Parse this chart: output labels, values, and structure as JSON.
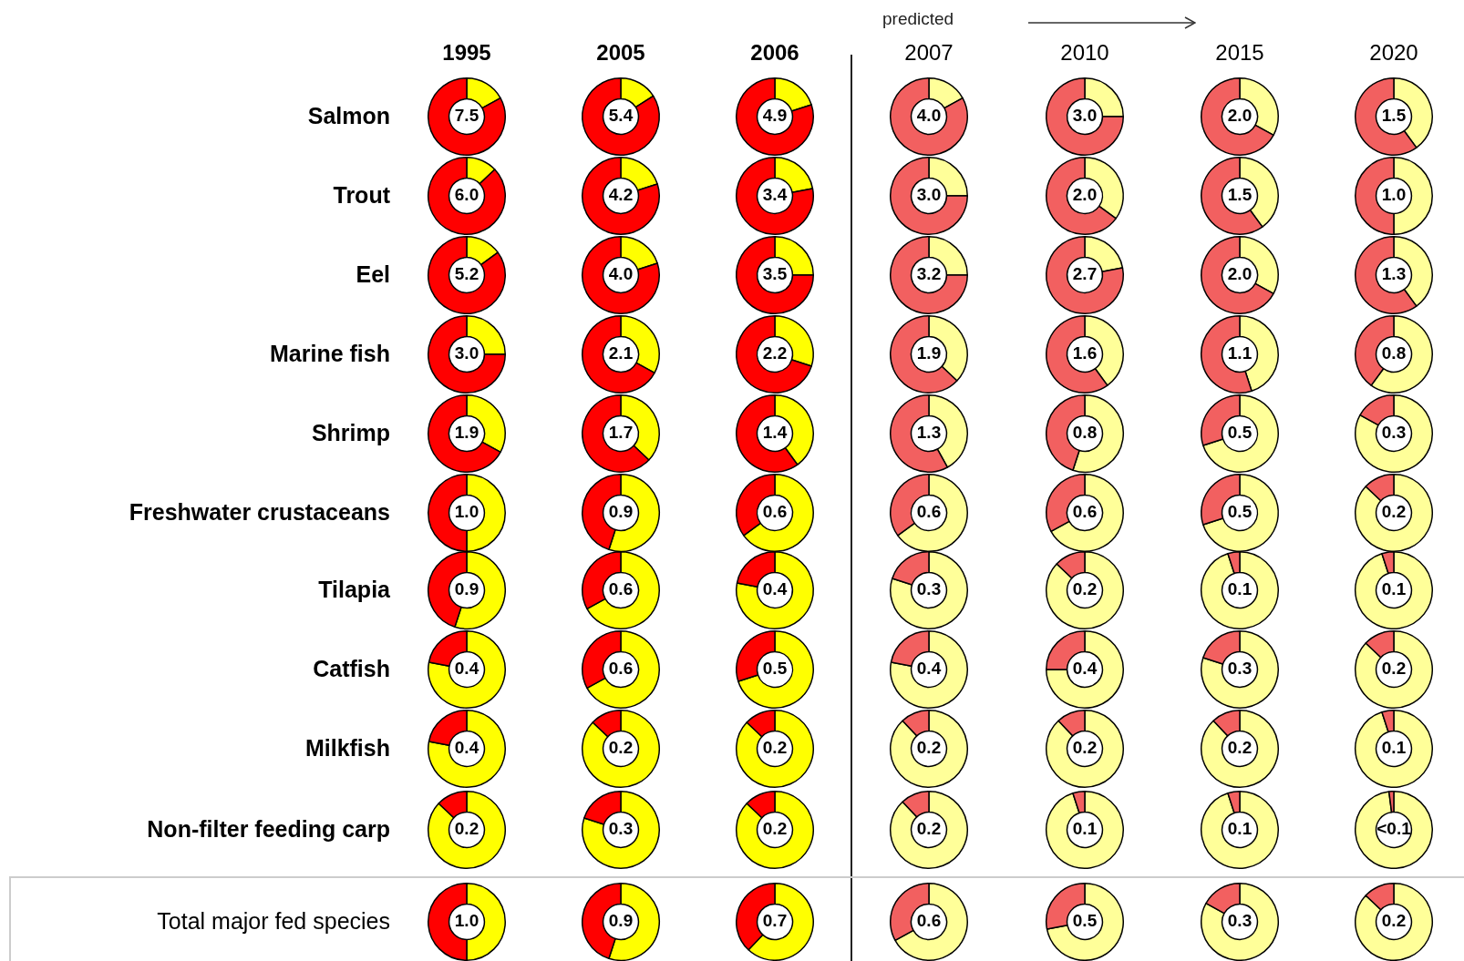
{
  "chart_data": [
    {
      "type": "other",
      "annotations": [
        "predicted",
        "1995",
        "2005",
        "2006",
        "2007",
        "2010",
        "2015",
        "2020"
      ]
    },
    {
      "type": "donut",
      "ylabel": "Salmon",
      "categories": [
        null,
        null
      ],
      "annotations": [
        "7.5",
        "5.4",
        "4.9",
        "4.0",
        "3.0",
        "2.0",
        "1.5"
      ],
      "series": [
        {
          "values": [
            17,
            83
          ],
          "colors": [
            "#ffff00",
            "#ff0000"
          ]
        },
        {
          "values": [
            16,
            84
          ],
          "colors": [
            "#ffff00",
            "#ff0000"
          ]
        },
        {
          "values": [
            20,
            80
          ],
          "colors": [
            "#ffff00",
            "#ff0000"
          ]
        },
        {
          "values": [
            17,
            83
          ],
          "colors": [
            "#ffff99",
            "#f26060"
          ]
        },
        {
          "values": [
            25,
            75
          ],
          "colors": [
            "#ffff99",
            "#f26060"
          ]
        },
        {
          "values": [
            33,
            67
          ],
          "colors": [
            "#ffff99",
            "#f26060"
          ]
        },
        {
          "values": [
            40,
            60
          ],
          "colors": [
            "#ffff99",
            "#f26060"
          ]
        }
      ]
    },
    {
      "type": "donut",
      "ylabel": "Trout",
      "categories": [
        null,
        null
      ],
      "annotations": [
        "6.0",
        "4.2",
        "3.4",
        "3.0",
        "2.0",
        "1.5",
        "1.0"
      ],
      "series": [
        {
          "values": [
            13,
            87
          ],
          "colors": [
            "#ffff00",
            "#ff0000"
          ]
        },
        {
          "values": [
            20,
            80
          ],
          "colors": [
            "#ffff00",
            "#ff0000"
          ]
        },
        {
          "values": [
            22,
            78
          ],
          "colors": [
            "#ffff00",
            "#ff0000"
          ]
        },
        {
          "values": [
            25,
            75
          ],
          "colors": [
            "#ffff99",
            "#f26060"
          ]
        },
        {
          "values": [
            35,
            65
          ],
          "colors": [
            "#ffff99",
            "#f26060"
          ]
        },
        {
          "values": [
            40,
            60
          ],
          "colors": [
            "#ffff99",
            "#f26060"
          ]
        },
        {
          "values": [
            50,
            50
          ],
          "colors": [
            "#ffff99",
            "#f26060"
          ]
        }
      ]
    },
    {
      "type": "donut",
      "ylabel": "Eel",
      "categories": [
        null,
        null
      ],
      "annotations": [
        "5.2",
        "4.0",
        "3.5",
        "3.2",
        "2.7",
        "2.0",
        "1.3"
      ],
      "series": [
        {
          "values": [
            15,
            85
          ],
          "colors": [
            "#ffff00",
            "#ff0000"
          ]
        },
        {
          "values": [
            20,
            80
          ],
          "colors": [
            "#ffff00",
            "#ff0000"
          ]
        },
        {
          "values": [
            25,
            75
          ],
          "colors": [
            "#ffff00",
            "#ff0000"
          ]
        },
        {
          "values": [
            25,
            75
          ],
          "colors": [
            "#ffff99",
            "#f26060"
          ]
        },
        {
          "values": [
            22,
            78
          ],
          "colors": [
            "#ffff99",
            "#f26060"
          ]
        },
        {
          "values": [
            33,
            67
          ],
          "colors": [
            "#ffff99",
            "#f26060"
          ]
        },
        {
          "values": [
            40,
            60
          ],
          "colors": [
            "#ffff99",
            "#f26060"
          ]
        }
      ]
    },
    {
      "type": "donut",
      "ylabel": "Marine fish",
      "categories": [
        null,
        null
      ],
      "annotations": [
        "3.0",
        "2.1",
        "2.2",
        "1.9",
        "1.6",
        "1.1",
        "0.8"
      ],
      "series": [
        {
          "values": [
            25,
            75
          ],
          "colors": [
            "#ffff00",
            "#ff0000"
          ]
        },
        {
          "values": [
            33,
            67
          ],
          "colors": [
            "#ffff00",
            "#ff0000"
          ]
        },
        {
          "values": [
            30,
            70
          ],
          "colors": [
            "#ffff00",
            "#ff0000"
          ]
        },
        {
          "values": [
            37,
            63
          ],
          "colors": [
            "#ffff99",
            "#f26060"
          ]
        },
        {
          "values": [
            40,
            60
          ],
          "colors": [
            "#ffff99",
            "#f26060"
          ]
        },
        {
          "values": [
            45,
            55
          ],
          "colors": [
            "#ffff99",
            "#f26060"
          ]
        },
        {
          "values": [
            60,
            40
          ],
          "colors": [
            "#ffff99",
            "#f26060"
          ]
        }
      ]
    },
    {
      "type": "donut",
      "ylabel": "Shrimp",
      "categories": [
        null,
        null
      ],
      "annotations": [
        "1.9",
        "1.7",
        "1.4",
        "1.3",
        "0.8",
        "0.5",
        "0.3"
      ],
      "series": [
        {
          "values": [
            33,
            67
          ],
          "colors": [
            "#ffff00",
            "#ff0000"
          ]
        },
        {
          "values": [
            37,
            63
          ],
          "colors": [
            "#ffff00",
            "#ff0000"
          ]
        },
        {
          "values": [
            40,
            60
          ],
          "colors": [
            "#ffff00",
            "#ff0000"
          ]
        },
        {
          "values": [
            42,
            58
          ],
          "colors": [
            "#ffff99",
            "#f26060"
          ]
        },
        {
          "values": [
            55,
            45
          ],
          "colors": [
            "#ffff99",
            "#f26060"
          ]
        },
        {
          "values": [
            70,
            30
          ],
          "colors": [
            "#ffff99",
            "#f26060"
          ]
        },
        {
          "values": [
            83,
            17
          ],
          "colors": [
            "#ffff99",
            "#f26060"
          ]
        }
      ]
    },
    {
      "type": "donut",
      "ylabel": "Freshwater crustaceans",
      "categories": [
        null,
        null
      ],
      "annotations": [
        "1.0",
        "0.9",
        "0.6",
        "0.6",
        "0.6",
        "0.5",
        "0.2"
      ],
      "series": [
        {
          "values": [
            50,
            50
          ],
          "colors": [
            "#ffff00",
            "#ff0000"
          ]
        },
        {
          "values": [
            55,
            45
          ],
          "colors": [
            "#ffff00",
            "#ff0000"
          ]
        },
        {
          "values": [
            65,
            35
          ],
          "colors": [
            "#ffff00",
            "#ff0000"
          ]
        },
        {
          "values": [
            65,
            35
          ],
          "colors": [
            "#ffff99",
            "#f26060"
          ]
        },
        {
          "values": [
            67,
            33
          ],
          "colors": [
            "#ffff99",
            "#f26060"
          ]
        },
        {
          "values": [
            70,
            30
          ],
          "colors": [
            "#ffff99",
            "#f26060"
          ]
        },
        {
          "values": [
            87,
            13
          ],
          "colors": [
            "#ffff99",
            "#f26060"
          ]
        }
      ]
    },
    {
      "type": "donut",
      "ylabel": "Tilapia",
      "categories": [
        null,
        null
      ],
      "annotations": [
        "0.9",
        "0.6",
        "0.4",
        "0.3",
        "0.2",
        "0.1",
        "0.1"
      ],
      "series": [
        {
          "values": [
            55,
            45
          ],
          "colors": [
            "#ffff00",
            "#ff0000"
          ]
        },
        {
          "values": [
            67,
            33
          ],
          "colors": [
            "#ffff00",
            "#ff0000"
          ]
        },
        {
          "values": [
            78,
            22
          ],
          "colors": [
            "#ffff00",
            "#ff0000"
          ]
        },
        {
          "values": [
            80,
            20
          ],
          "colors": [
            "#ffff99",
            "#f26060"
          ]
        },
        {
          "values": [
            87,
            13
          ],
          "colors": [
            "#ffff99",
            "#f26060"
          ]
        },
        {
          "values": [
            95,
            5
          ],
          "colors": [
            "#ffff99",
            "#f26060"
          ]
        },
        {
          "values": [
            95,
            5
          ],
          "colors": [
            "#ffff99",
            "#f26060"
          ]
        }
      ]
    },
    {
      "type": "donut",
      "ylabel": "Catfish",
      "categories": [
        null,
        null
      ],
      "annotations": [
        "0.4",
        "0.6",
        "0.5",
        "0.4",
        "0.4",
        "0.3",
        "0.2"
      ],
      "series": [
        {
          "values": [
            78,
            22
          ],
          "colors": [
            "#ffff00",
            "#ff0000"
          ]
        },
        {
          "values": [
            67,
            33
          ],
          "colors": [
            "#ffff00",
            "#ff0000"
          ]
        },
        {
          "values": [
            70,
            30
          ],
          "colors": [
            "#ffff00",
            "#ff0000"
          ]
        },
        {
          "values": [
            78,
            22
          ],
          "colors": [
            "#ffff99",
            "#f26060"
          ]
        },
        {
          "values": [
            75,
            25
          ],
          "colors": [
            "#ffff99",
            "#f26060"
          ]
        },
        {
          "values": [
            80,
            20
          ],
          "colors": [
            "#ffff99",
            "#f26060"
          ]
        },
        {
          "values": [
            87,
            13
          ],
          "colors": [
            "#ffff99",
            "#f26060"
          ]
        }
      ]
    },
    {
      "type": "donut",
      "ylabel": "Milkfish",
      "categories": [
        null,
        null
      ],
      "annotations": [
        "0.4",
        "0.2",
        "0.2",
        "0.2",
        "0.2",
        "0.2",
        "0.1"
      ],
      "series": [
        {
          "values": [
            78,
            22
          ],
          "colors": [
            "#ffff00",
            "#ff0000"
          ]
        },
        {
          "values": [
            87,
            13
          ],
          "colors": [
            "#ffff00",
            "#ff0000"
          ]
        },
        {
          "values": [
            87,
            13
          ],
          "colors": [
            "#ffff00",
            "#ff0000"
          ]
        },
        {
          "values": [
            88,
            12
          ],
          "colors": [
            "#ffff99",
            "#f26060"
          ]
        },
        {
          "values": [
            88,
            12
          ],
          "colors": [
            "#ffff99",
            "#f26060"
          ]
        },
        {
          "values": [
            88,
            12
          ],
          "colors": [
            "#ffff99",
            "#f26060"
          ]
        },
        {
          "values": [
            95,
            5
          ],
          "colors": [
            "#ffff99",
            "#f26060"
          ]
        }
      ]
    },
    {
      "type": "donut",
      "ylabel": "Non-filter feeding carp",
      "categories": [
        null,
        null
      ],
      "annotations": [
        "0.2",
        "0.3",
        "0.2",
        "0.2",
        "0.1",
        "0.1",
        "<0.1"
      ],
      "series": [
        {
          "values": [
            87,
            13
          ],
          "colors": [
            "#ffff00",
            "#ff0000"
          ]
        },
        {
          "values": [
            80,
            20
          ],
          "colors": [
            "#ffff00",
            "#ff0000"
          ]
        },
        {
          "values": [
            87,
            13
          ],
          "colors": [
            "#ffff00",
            "#ff0000"
          ]
        },
        {
          "values": [
            88,
            12
          ],
          "colors": [
            "#ffff99",
            "#f26060"
          ]
        },
        {
          "values": [
            95,
            5
          ],
          "colors": [
            "#ffff99",
            "#f26060"
          ]
        },
        {
          "values": [
            95,
            5
          ],
          "colors": [
            "#ffff99",
            "#f26060"
          ]
        },
        {
          "values": [
            98,
            2
          ],
          "colors": [
            "#ffff99",
            "#f26060"
          ]
        }
      ]
    },
    {
      "type": "donut",
      "ylabel": "Total major fed species",
      "categories": [
        null,
        null
      ],
      "annotations": [
        "1.0",
        "0.9",
        "0.7",
        "0.6",
        "0.5",
        "0.3",
        "0.2"
      ],
      "series": [
        {
          "values": [
            50,
            50
          ],
          "colors": [
            "#ffff00",
            "#ff0000"
          ]
        },
        {
          "values": [
            55,
            45
          ],
          "colors": [
            "#ffff00",
            "#ff0000"
          ]
        },
        {
          "values": [
            62,
            38
          ],
          "colors": [
            "#ffff00",
            "#ff0000"
          ]
        },
        {
          "values": [
            67,
            33
          ],
          "colors": [
            "#ffff99",
            "#f26060"
          ]
        },
        {
          "values": [
            72,
            28
          ],
          "colors": [
            "#ffff99",
            "#f26060"
          ]
        },
        {
          "values": [
            83,
            17
          ],
          "colors": [
            "#ffff99",
            "#f26060"
          ]
        },
        {
          "values": [
            87,
            13
          ],
          "colors": [
            "#ffff99",
            "#f26060"
          ]
        }
      ]
    }
  ]
}
